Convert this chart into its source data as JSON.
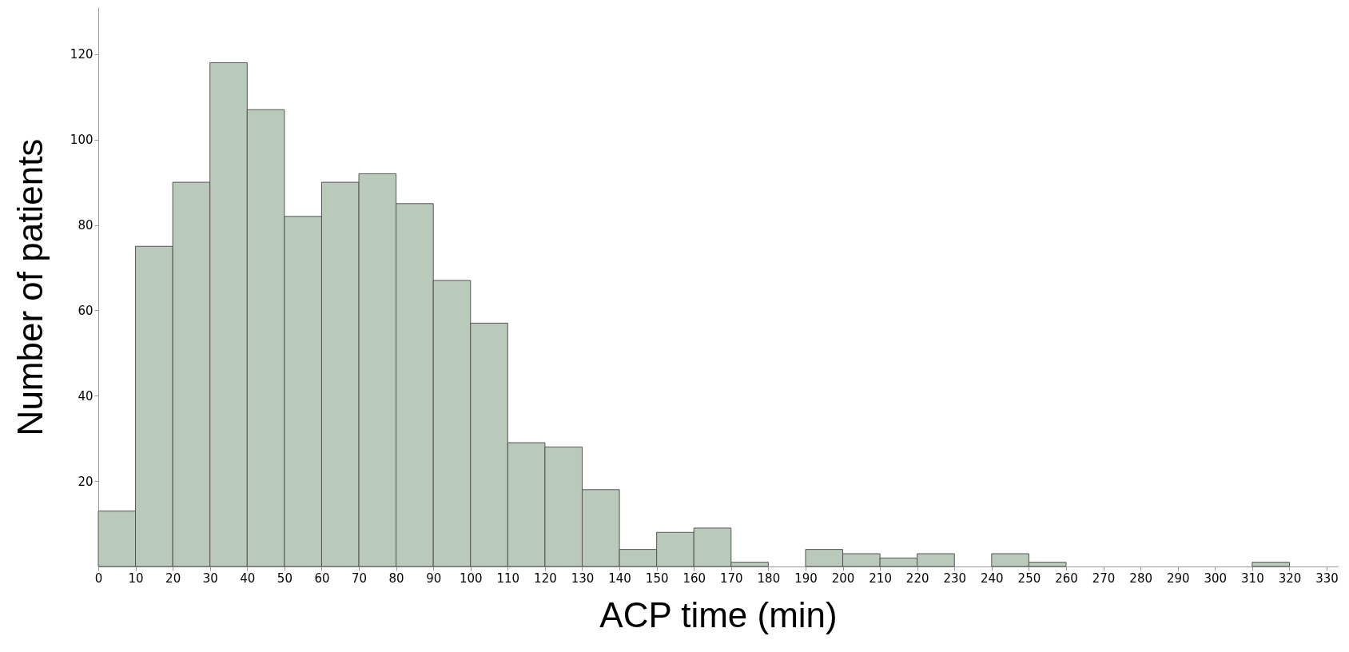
{
  "chart_data": {
    "type": "histogram",
    "xlabel": "ACP time (min)",
    "ylabel": "Number of patients",
    "bins": [
      0,
      10,
      20,
      30,
      40,
      50,
      60,
      70,
      80,
      90,
      100,
      110,
      120,
      130,
      140,
      150,
      160,
      170,
      180,
      190,
      200,
      210,
      220,
      230,
      240,
      250,
      260,
      270,
      280,
      290,
      300,
      310,
      320,
      330
    ],
    "values": [
      13,
      75,
      90,
      118,
      107,
      82,
      90,
      92,
      85,
      67,
      57,
      29,
      28,
      18,
      4,
      8,
      9,
      1,
      0,
      4,
      3,
      2,
      3,
      0,
      3,
      1,
      0,
      0,
      0,
      0,
      0,
      1,
      0
    ],
    "color": "#b9cabb",
    "xlim": [
      0,
      333
    ],
    "xticks": [
      0,
      10,
      20,
      30,
      40,
      50,
      60,
      70,
      80,
      90,
      100,
      110,
      120,
      130,
      140,
      150,
      160,
      170,
      180,
      190,
      200,
      210,
      220,
      230,
      240,
      250,
      260,
      270,
      280,
      290,
      300,
      310,
      320,
      330
    ],
    "ylim": [
      0,
      131
    ],
    "yticks": [
      20,
      40,
      60,
      80,
      100,
      120
    ],
    "grid": false
  }
}
